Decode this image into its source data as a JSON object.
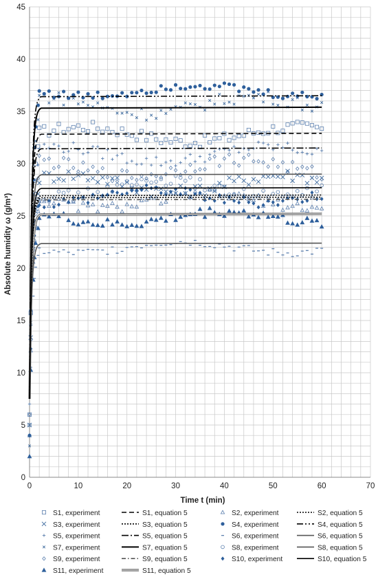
{
  "chart_data": {
    "type": "scatter",
    "xlabel": "Time t (min)",
    "ylabel": "Absolute humidity ω (g/m³)",
    "xlim": [
      0,
      70
    ],
    "ylim": [
      0,
      45
    ],
    "xticks": [
      0,
      10,
      20,
      30,
      40,
      50,
      60,
      70
    ],
    "yticks": [
      0,
      5,
      10,
      15,
      20,
      25,
      30,
      35,
      40,
      45
    ],
    "grid": true,
    "legend_position": "bottom",
    "experiment_series": [
      {
        "name": "S1, experiment",
        "marker": "square",
        "color": "#5b7fae",
        "level": 32.8,
        "spread": 0.8,
        "start": 6
      },
      {
        "name": "S3, experiment",
        "marker": "x",
        "color": "#3d6a9e",
        "level": 28.1,
        "spread": 0.9,
        "start": 5
      },
      {
        "name": "S5, experiment",
        "marker": "plus",
        "color": "#5b7fae",
        "level": 30.9,
        "spread": 0.8,
        "start": 7
      },
      {
        "name": "S7, experiment",
        "marker": "small-x",
        "color": "#3d6a9e",
        "level": 35.6,
        "spread": 0.9,
        "start": 3
      },
      {
        "name": "S9, experiment",
        "marker": "diamond-open",
        "color": "#5b7fae",
        "level": 29.6,
        "spread": 0.9,
        "start": 6
      },
      {
        "name": "S11, experiment",
        "marker": "triangle-filled",
        "color": "#2e5f9b",
        "level": 24.8,
        "spread": 0.7,
        "start": 2
      },
      {
        "name": "S2, experiment",
        "marker": "triangle-open",
        "color": "#5b7fae",
        "level": 26.4,
        "spread": 0.7,
        "start": 4
      },
      {
        "name": "S4, experiment",
        "marker": "circle-filled",
        "color": "#2e5f9b",
        "level": 37.0,
        "spread": 0.6,
        "start": 4
      },
      {
        "name": "S6, experiment",
        "marker": "dash",
        "color": "#5b7fae",
        "level": 22.0,
        "spread": 0.6,
        "start": 4
      },
      {
        "name": "S8, experiment",
        "marker": "circle-open",
        "color": "#5b7fae",
        "level": 27.6,
        "spread": 0.8,
        "start": 5
      },
      {
        "name": "S10, experiment",
        "marker": "diamond-filled",
        "color": "#2e5f9b",
        "level": 26.9,
        "spread": 0.7,
        "start": 4
      }
    ],
    "equation_series": [
      {
        "name": "S1, equation 5",
        "style": "dash",
        "color": "#000000",
        "level": 32.9
      },
      {
        "name": "S3, equation 5",
        "style": "dash-dot",
        "color": "#000000",
        "level": 27.0
      },
      {
        "name": "S5, equation 5",
        "style": "long-dash-dot",
        "color": "#000000",
        "level": 31.5
      },
      {
        "name": "S7, equation 5",
        "style": "solid-thick",
        "color": "#000000",
        "level": 35.4
      },
      {
        "name": "S9, equation 5",
        "style": "double-dot",
        "color": "#555555",
        "level": 26.6
      },
      {
        "name": "S11, equation 5",
        "style": "double",
        "color": "#555555",
        "level": 25.2
      },
      {
        "name": "S2, equation 5",
        "style": "dotted",
        "color": "#000000",
        "level": 26.8
      },
      {
        "name": "S4, equation 5",
        "style": "dash-dot-dot",
        "color": "#000000",
        "level": 36.5
      },
      {
        "name": "S6, equation 5",
        "style": "solid-gray",
        "color": "#555555",
        "level": 22.4
      },
      {
        "name": "S8, equation 5",
        "style": "solid-gray",
        "color": "#555555",
        "level": 29.0
      },
      {
        "name": "S10, equation 5",
        "style": "solid",
        "color": "#000000",
        "level": 27.7
      }
    ],
    "legend_rows": [
      [
        "S1, experiment",
        "S1, equation 5",
        "S2, experiment",
        "S2, equation 5"
      ],
      [
        "S3, experiment",
        "S3, equation 5",
        "S4, experiment",
        "S4, equation 5"
      ],
      [
        "S5, experiment",
        "S5, equation 5",
        "S6, experiment",
        "S6, equation 5"
      ],
      [
        "S7, experiment",
        "S7, equation 5",
        "S8, experiment",
        "S8, equation 5"
      ],
      [
        "S9, experiment",
        "S9, equation 5",
        "S10, experiment",
        "S10, equation 5"
      ],
      [
        "S11, experiment",
        "S11, equation 5"
      ]
    ]
  }
}
